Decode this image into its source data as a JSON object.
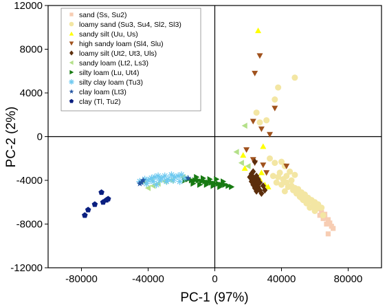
{
  "chart_data": {
    "type": "scatter",
    "xlabel": "PC-1 (97%)",
    "ylabel": "PC-2 (2%)",
    "xlim": [
      -100000,
      100000
    ],
    "ylim": [
      -12000,
      12000
    ],
    "xticks": [
      -80000,
      -40000,
      0,
      40000,
      80000
    ],
    "yticks": [
      -12000,
      -8000,
      -4000,
      0,
      4000,
      8000,
      12000
    ],
    "xtick_labels": [
      "-80000",
      "-40000",
      "0",
      "40000",
      "80000"
    ],
    "ytick_labels": [
      "-12000",
      "-8000",
      "-4000",
      "0",
      "4000",
      "8000",
      "12000"
    ],
    "grid": false,
    "legend_position": "top-left",
    "series": [
      {
        "name": "sand (Ss, Su2)",
        "marker": "square",
        "color": "#f7cdb3",
        "points": [
          [
            62000,
            -6600
          ],
          [
            64000,
            -6900
          ],
          [
            66000,
            -7100
          ],
          [
            68000,
            -7600
          ],
          [
            69000,
            -7900
          ],
          [
            70000,
            -8200
          ],
          [
            71000,
            -8400
          ],
          [
            68000,
            -8900
          ],
          [
            66000,
            -7400
          ],
          [
            67000,
            -8000
          ],
          [
            63000,
            -7200
          ],
          [
            65000,
            -7500
          ]
        ]
      },
      {
        "name": "loamy sand (Su3, Su4, Sl2, Sl3)",
        "marker": "circle",
        "color": "#f3e6a3",
        "points": [
          [
            48000,
            5400
          ],
          [
            38000,
            4500
          ],
          [
            36000,
            3400
          ],
          [
            25000,
            2200
          ],
          [
            27000,
            1300
          ],
          [
            31000,
            1500
          ],
          [
            33000,
            -2000
          ],
          [
            36000,
            -2400
          ],
          [
            40000,
            -2300
          ],
          [
            42000,
            -2700
          ],
          [
            45000,
            -3200
          ],
          [
            48000,
            -3500
          ],
          [
            39000,
            -3300
          ],
          [
            41000,
            -3900
          ],
          [
            43000,
            -4200
          ],
          [
            46000,
            -4500
          ],
          [
            48000,
            -4700
          ],
          [
            50000,
            -4800
          ],
          [
            52000,
            -5100
          ],
          [
            54000,
            -5300
          ],
          [
            56000,
            -5600
          ],
          [
            58000,
            -5800
          ],
          [
            60000,
            -6000
          ],
          [
            62000,
            -6200
          ],
          [
            64000,
            -6500
          ],
          [
            55000,
            -6100
          ],
          [
            57000,
            -6500
          ],
          [
            53000,
            -5800
          ],
          [
            51000,
            -5500
          ],
          [
            49000,
            -5200
          ],
          [
            47000,
            -4900
          ],
          [
            44000,
            -4600
          ],
          [
            60000,
            -6800
          ],
          [
            59000,
            -6300
          ],
          [
            46000,
            -4000
          ],
          [
            43000,
            -3600
          ],
          [
            38000,
            -3700
          ],
          [
            35000,
            -3600
          ],
          [
            37000,
            -4200
          ],
          [
            42000,
            -5000
          ],
          [
            65000,
            -7200
          ],
          [
            61000,
            -6600
          ],
          [
            56000,
            -6000
          ],
          [
            52000,
            -5600
          ],
          [
            40000,
            -4400
          ]
        ]
      },
      {
        "name": "sandy silt (Uu, Us)",
        "marker": "triangle-up",
        "color": "#ffff00",
        "points": [
          [
            26000,
            9700
          ],
          [
            29000,
            -900
          ],
          [
            17000,
            -1700
          ],
          [
            18000,
            -2900
          ],
          [
            27000,
            -3900
          ],
          [
            30000,
            -4400
          ],
          [
            32000,
            -4600
          ],
          [
            28000,
            -3300
          ]
        ]
      },
      {
        "name": "high sandy loam (Sl4, Slu)",
        "marker": "triangle-down",
        "color": "#a0521d",
        "points": [
          [
            27000,
            7400
          ],
          [
            24000,
            5800
          ],
          [
            36000,
            2600
          ],
          [
            23000,
            1400
          ],
          [
            28000,
            700
          ],
          [
            33000,
            200
          ],
          [
            19000,
            -1200
          ],
          [
            24000,
            -2400
          ],
          [
            29000,
            -2600
          ],
          [
            31000,
            -3300
          ],
          [
            43000,
            -2700
          ],
          [
            23000,
            -2100
          ]
        ]
      },
      {
        "name": "loamy silt (Ut2, Ut3, Uls)",
        "marker": "diamond",
        "color": "#5c2e0c",
        "points": [
          [
            22000,
            -3400
          ],
          [
            23000,
            -3700
          ],
          [
            24000,
            -4000
          ],
          [
            25000,
            -4300
          ],
          [
            26000,
            -4600
          ],
          [
            27000,
            -4900
          ],
          [
            25000,
            -3600
          ],
          [
            24000,
            -2300
          ],
          [
            22000,
            -4100
          ],
          [
            23000,
            -4400
          ],
          [
            26000,
            -3900
          ],
          [
            21000,
            -3700
          ],
          [
            24000,
            -4700
          ],
          [
            27000,
            -4200
          ],
          [
            29000,
            -4500
          ],
          [
            25000,
            -5000
          ],
          [
            28000,
            -5200
          ],
          [
            23000,
            -3200
          ],
          [
            26000,
            -4200
          ],
          [
            30000,
            -4900
          ]
        ]
      },
      {
        "name": "sandy loam (Lt2, Ls3)",
        "marker": "triangle-left",
        "color": "#b4e089",
        "points": [
          [
            18000,
            1000
          ],
          [
            13000,
            -1400
          ],
          [
            -37000,
            -4500
          ],
          [
            -40000,
            -4700
          ],
          [
            -34000,
            -4300
          ],
          [
            -30000,
            -4100
          ],
          [
            -26000,
            -4000
          ],
          [
            -19000,
            -3700
          ],
          [
            16000,
            -2400
          ],
          [
            20000,
            -2700
          ],
          [
            -42000,
            -4200
          ],
          [
            -38000,
            -3900
          ]
        ]
      },
      {
        "name": "silty loam (Lu, Ut4)",
        "marker": "triangle-right",
        "color": "#177a12",
        "points": [
          [
            -16000,
            -3900
          ],
          [
            -14000,
            -4000
          ],
          [
            -12000,
            -4000
          ],
          [
            -10000,
            -4000
          ],
          [
            -8000,
            -4100
          ],
          [
            -6000,
            -4100
          ],
          [
            -4000,
            -4200
          ],
          [
            -2000,
            -4200
          ],
          [
            0,
            -4300
          ],
          [
            2000,
            -4300
          ],
          [
            4000,
            -4400
          ],
          [
            6000,
            -4400
          ],
          [
            8000,
            -4500
          ],
          [
            10000,
            -4600
          ],
          [
            -13000,
            -4300
          ],
          [
            -9000,
            -4400
          ],
          [
            -5000,
            -4400
          ],
          [
            -1000,
            -4500
          ],
          [
            3000,
            -4600
          ],
          [
            -18000,
            -4000
          ],
          [
            -11000,
            -3700
          ],
          [
            -7000,
            -3800
          ],
          [
            -3000,
            -3900
          ],
          [
            1000,
            -3900
          ],
          [
            5000,
            -4100
          ]
        ]
      },
      {
        "name": "silty clay loam (Tu3)",
        "marker": "asterisk",
        "color": "#6ec9f0",
        "points": [
          [
            -45000,
            -4100
          ],
          [
            -42000,
            -3900
          ],
          [
            -40000,
            -4000
          ],
          [
            -38000,
            -3800
          ],
          [
            -36000,
            -3700
          ],
          [
            -34000,
            -3600
          ],
          [
            -32000,
            -3800
          ],
          [
            -30000,
            -3600
          ],
          [
            -28000,
            -3900
          ],
          [
            -26000,
            -3500
          ],
          [
            -24000,
            -3700
          ],
          [
            -22000,
            -3600
          ],
          [
            -20000,
            -3500
          ],
          [
            -18000,
            -3800
          ],
          [
            -41000,
            -4300
          ],
          [
            -37000,
            -4100
          ],
          [
            -33000,
            -4000
          ],
          [
            -29000,
            -4100
          ],
          [
            -25000,
            -4000
          ],
          [
            -21000,
            -4100
          ],
          [
            -35000,
            -4400
          ]
        ]
      },
      {
        "name": "clay loam (Lt3)",
        "marker": "star",
        "color": "#2556a3",
        "points": [
          [
            -45000,
            -4300
          ],
          [
            -43000,
            -4000
          ],
          [
            -44000,
            -4200
          ],
          [
            -16000,
            -3800
          ]
        ]
      },
      {
        "name": "clay (Tl, Tu2)",
        "marker": "pentagon",
        "color": "#0a1f80",
        "points": [
          [
            -78000,
            -7200
          ],
          [
            -76000,
            -6700
          ],
          [
            -72000,
            -6200
          ],
          [
            -67000,
            -6000
          ],
          [
            -64000,
            -5700
          ],
          [
            -68000,
            -5100
          ],
          [
            -65000,
            -5800
          ]
        ]
      }
    ]
  }
}
